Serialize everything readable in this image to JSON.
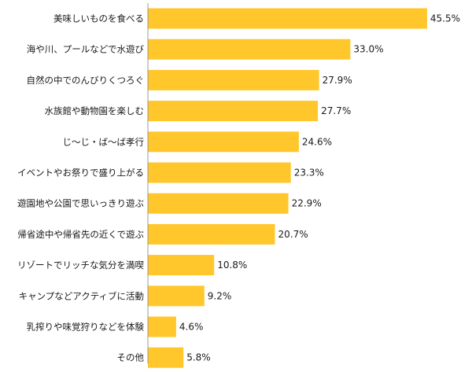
{
  "chart_data": {
    "type": "bar",
    "orientation": "horizontal",
    "categories": [
      "美味しいものを食べる",
      "海や川、プールなどで水遊び",
      "自然の中でのんびりくつろぐ",
      "水族館や動物園を楽しむ",
      "じ～じ・ば～ば孝行",
      "イベントやお祭りで盛り上がる",
      "遊園地や公園で思いっきり遊ぶ",
      "帰省途中や帰省先の近くで遊ぶ",
      "リゾートでリッチな気分を満喫",
      "キャンプなどアクティブに活動",
      "乳搾りや味覚狩りなどを体験",
      "その他"
    ],
    "values": [
      45.5,
      33.0,
      27.9,
      27.7,
      24.6,
      23.3,
      22.9,
      20.7,
      10.8,
      9.2,
      4.6,
      5.8
    ],
    "value_labels": [
      "45.5%",
      "33.0%",
      "27.9%",
      "27.7%",
      "24.6%",
      "23.3%",
      "22.9%",
      "20.7%",
      "10.8%",
      "9.2%",
      "4.6%",
      "5.8%"
    ],
    "xlim": [
      0,
      50
    ],
    "bar_color": "#FFC72C",
    "axis_color": "#999999",
    "text_color": "#1a1a1a",
    "grid": false
  }
}
